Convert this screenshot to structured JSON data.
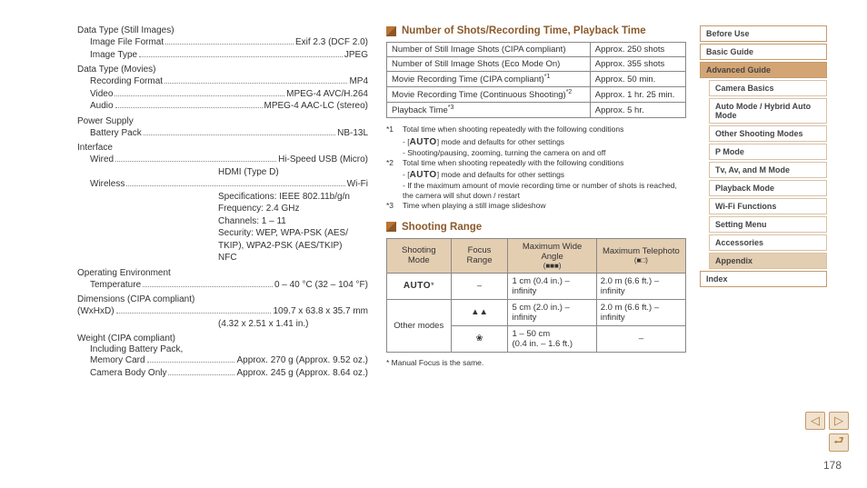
{
  "pageNumber": "178",
  "left": {
    "groups": [
      {
        "label": "Data Type (Still Images)",
        "rows": [
          {
            "k": "Image File Format",
            "v": "Exif 2.3 (DCF 2.0)"
          },
          {
            "k": "Image Type",
            "v": "JPEG"
          }
        ]
      },
      {
        "label": "Data Type (Movies)",
        "rows": [
          {
            "k": "Recording Format",
            "v": "MP4"
          },
          {
            "k": "Video",
            "v": "MPEG-4 AVC/H.264"
          },
          {
            "k": "Audio",
            "v": "MPEG-4 AAC-LC (stereo)"
          }
        ]
      },
      {
        "label": "Power Supply",
        "rows": [
          {
            "k": "Battery Pack ",
            "v": "NB-13L"
          }
        ]
      },
      {
        "label": "Interface",
        "rows": [
          {
            "k": "Wired ",
            "v": "Hi-Speed USB (Micro)"
          }
        ],
        "extraLines": [
          "HDMI (Type D)"
        ],
        "rows2": [
          {
            "k": "Wireless",
            "v": "Wi-Fi"
          }
        ],
        "extraLines2": [
          "Specifications: IEEE 802.11b/g/n",
          "Frequency: 2.4 GHz",
          "Channels: 1 – 11",
          "Security: WEP, WPA-PSK (AES/",
          "TKIP), WPA2-PSK (AES/TKIP)",
          "NFC"
        ]
      },
      {
        "label": "Operating Environment",
        "rows": [
          {
            "k": "Temperature",
            "v": "0 – 40 °C (32 – 104 °F)"
          }
        ]
      },
      {
        "label": "Dimensions (CIPA compliant)",
        "rows": [
          {
            "k": "(WxHxD)",
            "v": "109.7 x 63.8 x 35.7 mm",
            "indent0": true
          }
        ],
        "extraLines": [
          "(4.32 x 2.51 x 1.41 in.)"
        ]
      },
      {
        "label": "Weight (CIPA compliant)",
        "rows": [],
        "extraLabel": "Including Battery Pack,",
        "rows2": [
          {
            "k": "Memory Card",
            "v": "Approx. 270 g (Approx. 9.52 oz.)"
          },
          {
            "k": "Camera Body Only ",
            "v": "Approx. 245 g (Approx. 8.64 oz.)"
          }
        ]
      }
    ]
  },
  "sections": {
    "shots": {
      "title": "Number of Shots/Recording Time, Playback Time",
      "rows": [
        [
          "Number of Still Image Shots (CIPA compliant)",
          "Approx. 250 shots",
          ""
        ],
        [
          "Number of Still Image Shots (Eco Mode On)",
          "Approx. 355 shots",
          ""
        ],
        [
          "Movie Recording Time (CIPA compliant)",
          "Approx. 50 min.",
          "*1"
        ],
        [
          "Movie Recording Time (Continuous Shooting)",
          "Approx. 1 hr. 25 min.",
          "*2"
        ],
        [
          "Playback Time",
          "Approx. 5 hr.",
          "*3"
        ]
      ],
      "footnotes": [
        {
          "n": "*1",
          "lines": [
            "Total time when shooting repeatedly with the following conditions"
          ],
          "subs": [
            "- [AUTO] mode and defaults for other settings",
            "- Shooting/pausing, zooming, turning the camera on and off"
          ]
        },
        {
          "n": "*2",
          "lines": [
            "Total time when shooting repeatedly with the following conditions"
          ],
          "subs": [
            "- [AUTO] mode and defaults for other settings",
            "- If the maximum amount of movie recording time or number of shots is reached, the camera will shut down / restart"
          ]
        },
        {
          "n": "*3",
          "lines": [
            "Time when playing a still image slideshow"
          ],
          "subs": []
        }
      ]
    },
    "range": {
      "title": "Shooting Range",
      "headers": [
        "Shooting Mode",
        "Focus Range",
        "Maximum Wide Angle",
        "Maximum Telephoto"
      ],
      "subheaders": [
        "",
        "",
        "(■■■)",
        "(■□)"
      ],
      "rows": [
        {
          "mode": "AUTO*",
          "focus": "–",
          "wide": "1 cm (0.4 in.) – infinity",
          "tele": "2.0 m (6.6 ft.) – infinity",
          "automode": true
        },
        {
          "mode": "Other modes",
          "focus": "▲▲",
          "wide": "5 cm (2.0 in.) – infinity",
          "tele": "2.0 m (6.6 ft.) – infinity",
          "rowspan": 2
        },
        {
          "focus": "❀",
          "wide": "1 – 50 cm\n(0.4 in. – 1.6 ft.)",
          "tele": "–"
        }
      ],
      "note": "* Manual Focus is the same."
    }
  },
  "nav": {
    "items": [
      {
        "label": "Before Use"
      },
      {
        "label": "Basic Guide"
      },
      {
        "label": "Advanced Guide",
        "active": true
      },
      {
        "label": "Camera Basics",
        "sub": true
      },
      {
        "label": "Auto Mode / Hybrid Auto Mode",
        "sub": true
      },
      {
        "label": "Other Shooting Modes",
        "sub": true
      },
      {
        "label": "P Mode",
        "sub": true
      },
      {
        "label": "Tv, Av, and M Mode",
        "sub": true
      },
      {
        "label": "Playback Mode",
        "sub": true
      },
      {
        "label": "Wi-Fi Functions",
        "sub": true
      },
      {
        "label": "Setting Menu",
        "sub": true
      },
      {
        "label": "Accessories",
        "sub": true
      },
      {
        "label": "Appendix",
        "sub": true,
        "activeSub": true
      },
      {
        "label": "Index"
      }
    ]
  }
}
